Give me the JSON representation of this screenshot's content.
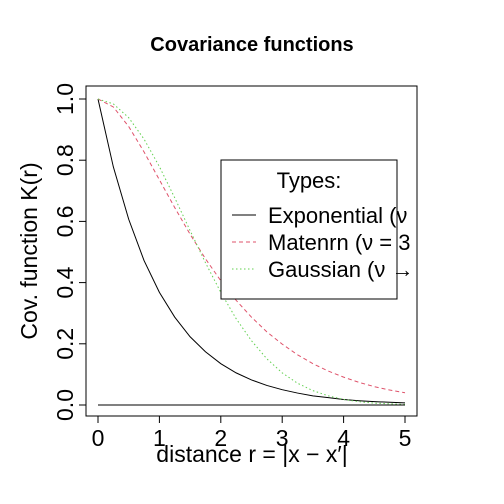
{
  "chart_data": {
    "type": "line",
    "title": "Covariance functions",
    "xlabel": "distance r = |x − x′|",
    "ylabel": "Cov. function K(r)",
    "xlim": [
      0,
      5
    ],
    "ylim": [
      0,
      1
    ],
    "x_ticks": [
      "0",
      "1",
      "2",
      "3",
      "4",
      "5"
    ],
    "y_ticks": [
      "0.0",
      "0.2",
      "0.4",
      "0.6",
      "0.8",
      "1.0"
    ],
    "legend": {
      "title": "Types:",
      "placement": "right",
      "entries": [
        {
          "label": "Exponential (ν",
          "color": "#000000",
          "dash": "solid"
        },
        {
          "label": "Matenrn (ν = 3",
          "color": "#DF536B",
          "dash": "dashed"
        },
        {
          "label": "Gaussian (ν →",
          "color": "#61D04F",
          "dash": "dotted"
        }
      ]
    },
    "series": [
      {
        "name": "Exponential",
        "color": "#000000",
        "dash": "solid",
        "x": [
          0,
          0.25,
          0.5,
          0.75,
          1,
          1.25,
          1.5,
          1.75,
          2,
          2.25,
          2.5,
          2.75,
          3,
          3.25,
          3.5,
          3.75,
          4,
          4.25,
          4.5,
          4.75,
          5
        ],
        "y": [
          1,
          0.778,
          0.607,
          0.472,
          0.368,
          0.287,
          0.223,
          0.174,
          0.135,
          0.105,
          0.082,
          0.064,
          0.05,
          0.039,
          0.03,
          0.024,
          0.018,
          0.014,
          0.011,
          0.009,
          0.007
        ]
      },
      {
        "name": "Matenrn",
        "color": "#DF536B",
        "dash": "dashed",
        "x": [
          0,
          0.25,
          0.5,
          0.75,
          1,
          1.25,
          1.5,
          1.75,
          2,
          2.25,
          2.5,
          2.75,
          3,
          3.25,
          3.5,
          3.75,
          4,
          4.25,
          4.5,
          4.75,
          5
        ],
        "y": [
          1,
          0.974,
          0.91,
          0.827,
          0.736,
          0.645,
          0.558,
          0.478,
          0.406,
          0.342,
          0.287,
          0.239,
          0.199,
          0.164,
          0.135,
          0.111,
          0.091,
          0.074,
          0.06,
          0.049,
          0.04
        ]
      },
      {
        "name": "Gaussian",
        "color": "#61D04F",
        "dash": "dotted",
        "x": [
          0,
          0.25,
          0.5,
          0.75,
          1,
          1.25,
          1.5,
          1.75,
          2,
          2.25,
          2.5,
          2.75,
          3,
          3.25,
          3.5,
          3.75,
          4,
          4.25,
          4.5,
          4.75,
          5
        ],
        "y": [
          1,
          0.984,
          0.939,
          0.869,
          0.779,
          0.677,
          0.57,
          0.465,
          0.368,
          0.282,
          0.21,
          0.151,
          0.105,
          0.071,
          0.047,
          0.03,
          0.018,
          0.011,
          0.006,
          0.004,
          0.002
        ]
      },
      {
        "name": "baseline",
        "color": "#000000",
        "dash": "solid",
        "x": [
          0,
          5
        ],
        "y": [
          0,
          0
        ]
      }
    ]
  }
}
